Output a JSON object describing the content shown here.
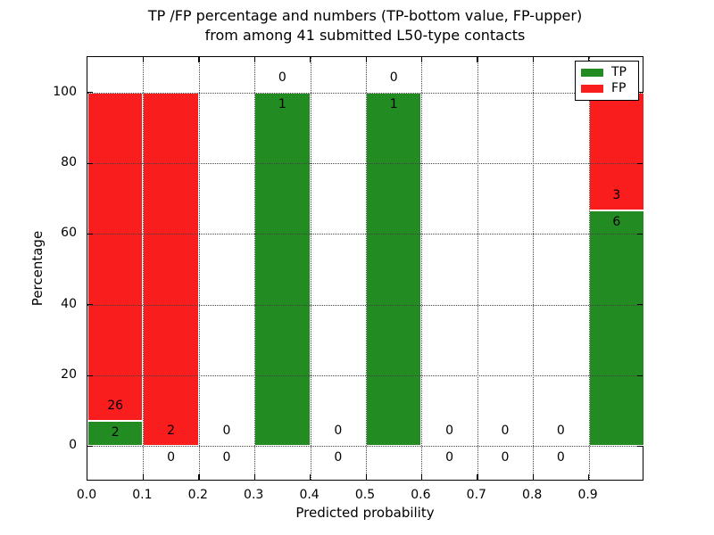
{
  "chart": {
    "title_line1": "TP /FP percentage and numbers (TP-bottom value, FP-upper)",
    "title_line2": "from among 41 submitted L50-type contacts",
    "xlabel": "Predicted probability",
    "ylabel": "Percentage",
    "legend": [
      {
        "label": "TP",
        "color": "#228b22"
      },
      {
        "label": "FP",
        "color": "#f91d1d"
      }
    ]
  },
  "chart_data": {
    "type": "bar",
    "stacked": true,
    "title": "TP /FP percentage and numbers (TP-bottom value, FP-upper)\nfrom among 41 submitted L50-type contacts",
    "xlabel": "Predicted probability",
    "ylabel": "Percentage",
    "total_contacts": 41,
    "xlim": [
      0.0,
      1.0
    ],
    "ylim": [
      -10,
      110
    ],
    "xticks": [
      "0.0",
      "0.1",
      "0.2",
      "0.3",
      "0.4",
      "0.5",
      "0.6",
      "0.7",
      "0.8",
      "0.9"
    ],
    "xtick_values": [
      0.0,
      0.1,
      0.2,
      0.3,
      0.4,
      0.5,
      0.6,
      0.7,
      0.8,
      0.9
    ],
    "yticks": [
      0,
      20,
      40,
      60,
      80,
      100
    ],
    "grid": "dotted",
    "legend_position": "upper right",
    "bin_width": 0.1,
    "bin_starts": [
      0.0,
      0.1,
      0.2,
      0.3,
      0.4,
      0.5,
      0.6,
      0.7,
      0.8,
      0.9
    ],
    "series": [
      {
        "name": "TP",
        "color": "#228b22",
        "counts": [
          2,
          0,
          0,
          1,
          0,
          1,
          0,
          0,
          0,
          6
        ]
      },
      {
        "name": "FP",
        "color": "#f91d1d",
        "counts": [
          26,
          2,
          0,
          0,
          0,
          0,
          0,
          0,
          0,
          3
        ]
      }
    ],
    "tp_percent_of_bin": [
      7.14,
      0,
      0,
      100,
      0,
      100,
      0,
      0,
      0,
      66.67
    ],
    "fp_percent_of_bin": [
      92.86,
      100,
      0,
      0,
      0,
      0,
      0,
      0,
      0,
      33.33
    ]
  }
}
